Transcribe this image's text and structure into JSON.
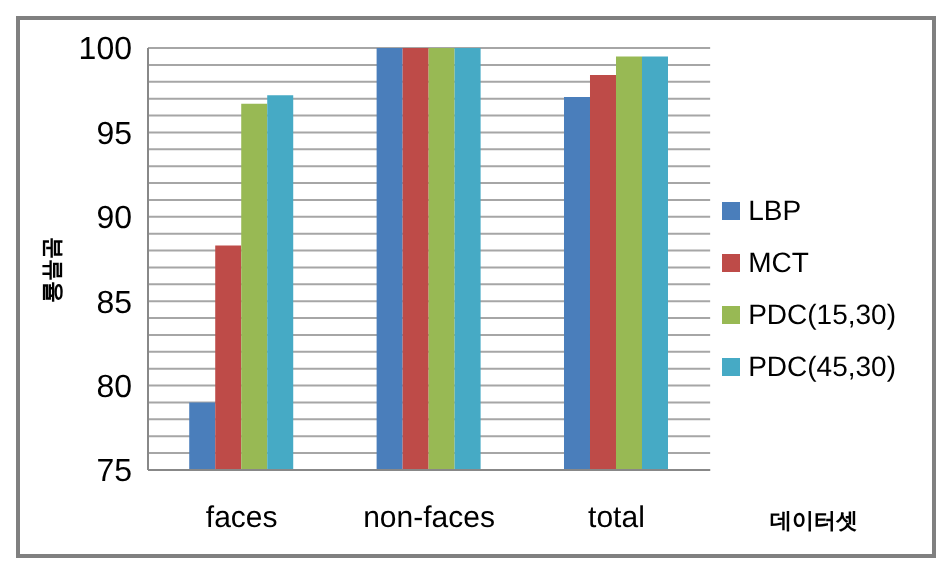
{
  "chart_data": {
    "type": "bar",
    "xlabel": "데이터셋",
    "ylabel": "분류율",
    "categories": [
      "faces",
      "non-faces",
      "total"
    ],
    "series": [
      {
        "name": "LBP",
        "color": "#4a7ebb",
        "values": [
          79,
          100,
          97.1
        ]
      },
      {
        "name": "MCT",
        "color": "#be4b48",
        "values": [
          88.3,
          100,
          98.4
        ]
      },
      {
        "name": "PDC(15,30)",
        "color": "#98b954",
        "values": [
          96.7,
          100,
          99.5
        ]
      },
      {
        "name": "PDC(45,30)",
        "color": "#46aac5",
        "values": [
          97.2,
          100,
          99.5
        ]
      }
    ],
    "ylim": [
      75,
      100
    ],
    "yticks": [
      75,
      {
        "value": 76,
        "label": null
      },
      {
        "value": 77,
        "label": null
      },
      {
        "value": 78,
        "label": null
      },
      {
        "value": 79,
        "label": null
      },
      80,
      {
        "value": 81,
        "label": null
      },
      {
        "value": 82,
        "label": null
      },
      {
        "value": 83,
        "label": null
      },
      {
        "value": 84,
        "label": null
      },
      85,
      {
        "value": 86,
        "label": null
      },
      {
        "value": 87,
        "label": null
      },
      {
        "value": 88,
        "label": null
      },
      {
        "value": 89,
        "label": null
      },
      90,
      {
        "value": 91,
        "label": null
      },
      {
        "value": 92,
        "label": null
      },
      {
        "value": 93,
        "label": null
      },
      {
        "value": 94,
        "label": null
      },
      95,
      {
        "value": 96,
        "label": null
      },
      {
        "value": 97,
        "label": null
      },
      {
        "value": 98,
        "label": null
      },
      {
        "value": 99,
        "label": null
      },
      100
    ],
    "grid": "y",
    "legend": "right"
  }
}
